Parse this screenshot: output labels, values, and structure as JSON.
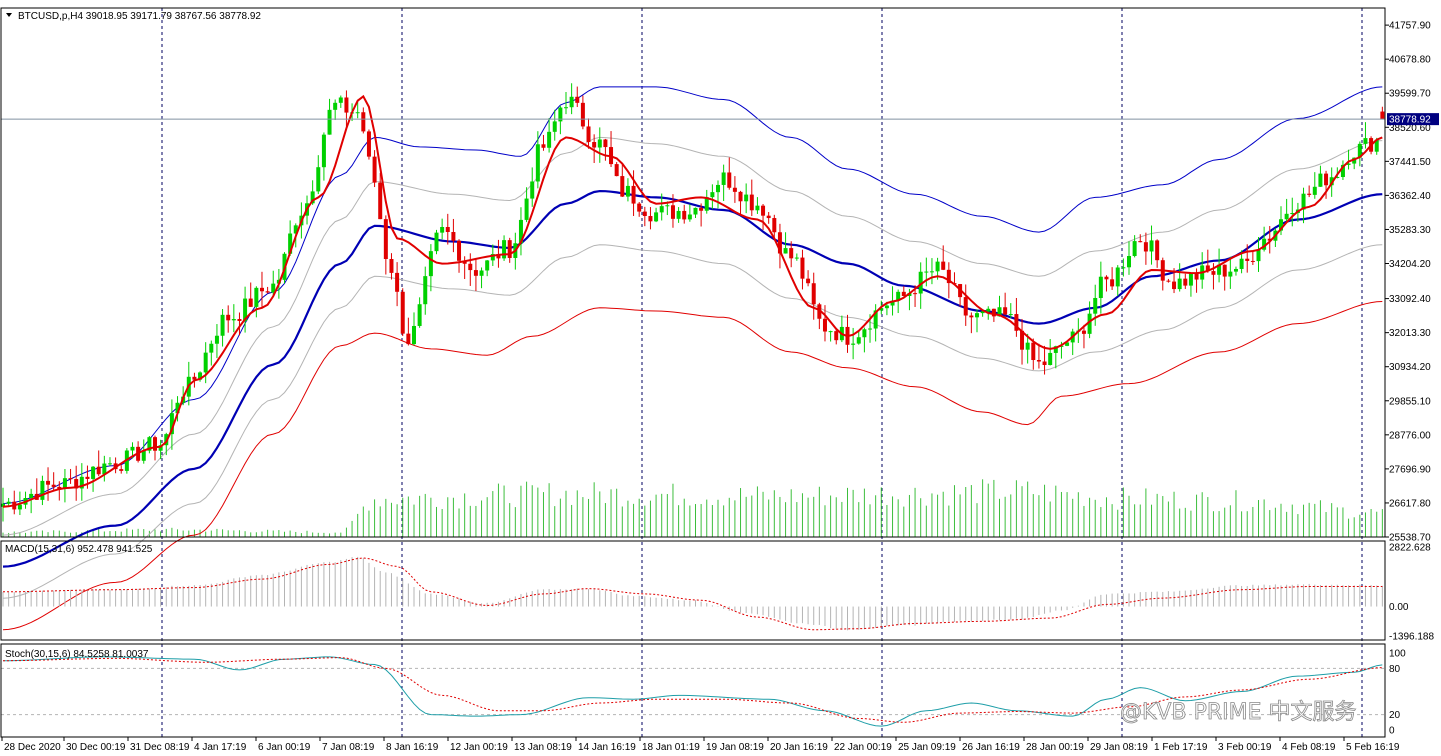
{
  "window": {
    "main_header": "BTCUSD,p,H4  39018.95 39171.79 38767.56 38778.92",
    "macd_header": "MACD(15,31,6) 952.478 941.525",
    "stoch_header": "Stoch(30,15,6) 84.5258 81.0037",
    "watermark": "@KVB PRIME 中文服务"
  },
  "colors": {
    "background": "#ffffff",
    "bull_candle": "#00d000",
    "bear_candle": "#e00000",
    "fast_ma": "#e00000",
    "middle_band": "#0000b4",
    "outer_upper_band": "#0000c8",
    "outer_lower_band": "#e00000",
    "inner_bands": "#b4b4b4",
    "volume": "#3cbe3c",
    "macd_hist": "#b4b4b4",
    "macd_signal": "#e00000",
    "stoch_main": "#1e9ea8",
    "stoch_signal": "#e00000",
    "price_tag_bg": "#000080",
    "grid": "#000060"
  },
  "chart_data": [
    {
      "type": "candlestick",
      "symbol": "BTCUSD,p",
      "timeframe": "H4",
      "ohlc_current": {
        "open": 39018.95,
        "high": 39171.79,
        "low": 38767.56,
        "close": 38778.92
      },
      "last_price_label": "38778.92",
      "ylim": [
        25538.7,
        42300
      ],
      "y_ticks": [
        "41757.90",
        "40678.80",
        "39599.70",
        "38520.60",
        "37441.50",
        "36362.40",
        "35283.30",
        "34204.20",
        "33092.40",
        "32013.30",
        "30934.20",
        "29855.10",
        "28776.00",
        "27696.90",
        "26617.80",
        "25538.70"
      ],
      "x_ticks": [
        "28 Dec 2020",
        "30 Dec 00:19",
        "31 Dec 08:19",
        "4 Jan 17:19",
        "6 Jan 00:19",
        "7 Jan 08:19",
        "8 Jan 16:19",
        "12 Jan 00:19",
        "13 Jan 08:19",
        "14 Jan 16:19",
        "18 Jan 01:19",
        "19 Jan 08:19",
        "20 Jan 16:19",
        "22 Jan 00:19",
        "25 Jan 09:19",
        "26 Jan 16:19",
        "28 Jan 00:19",
        "29 Jan 08:19",
        "1 Feb 17:19",
        "3 Feb 00:19",
        "4 Feb 08:19",
        "5 Feb 16:19"
      ],
      "anchors_close": [
        [
          0,
          26600
        ],
        [
          10,
          27200
        ],
        [
          20,
          27900
        ],
        [
          28,
          28500
        ],
        [
          32,
          30200
        ],
        [
          40,
          32500
        ],
        [
          48,
          33500
        ],
        [
          53,
          35900
        ],
        [
          59,
          39200
        ],
        [
          63,
          39000
        ],
        [
          66,
          36800
        ],
        [
          68,
          34500
        ],
        [
          72,
          31800
        ],
        [
          78,
          35200
        ],
        [
          84,
          34000
        ],
        [
          90,
          34700
        ],
        [
          96,
          37900
        ],
        [
          100,
          39400
        ],
        [
          106,
          38000
        ],
        [
          110,
          36500
        ],
        [
          116,
          35800
        ],
        [
          122,
          35900
        ],
        [
          128,
          36900
        ],
        [
          134,
          36100
        ],
        [
          140,
          34400
        ],
        [
          146,
          32200
        ],
        [
          150,
          31900
        ],
        [
          158,
          33000
        ],
        [
          166,
          34000
        ],
        [
          172,
          32500
        ],
        [
          178,
          32500
        ],
        [
          184,
          31000
        ],
        [
          190,
          31800
        ],
        [
          196,
          33600
        ],
        [
          202,
          35000
        ],
        [
          208,
          33600
        ],
        [
          214,
          33900
        ],
        [
          220,
          34100
        ],
        [
          224,
          35000
        ],
        [
          230,
          36200
        ],
        [
          236,
          37000
        ],
        [
          240,
          37800
        ],
        [
          244,
          38100
        ],
        [
          245,
          38778.92
        ]
      ],
      "fast_ma": [
        [
          0,
          26500
        ],
        [
          12,
          27100
        ],
        [
          28,
          28400
        ],
        [
          34,
          30500
        ],
        [
          46,
          32800
        ],
        [
          56,
          36300
        ],
        [
          64,
          39500
        ],
        [
          70,
          35000
        ],
        [
          78,
          34200
        ],
        [
          90,
          34500
        ],
        [
          100,
          38200
        ],
        [
          108,
          37600
        ],
        [
          116,
          36100
        ],
        [
          124,
          36300
        ],
        [
          134,
          35600
        ],
        [
          144,
          32800
        ],
        [
          150,
          31900
        ],
        [
          158,
          33000
        ],
        [
          166,
          33800
        ],
        [
          176,
          32600
        ],
        [
          186,
          31500
        ],
        [
          196,
          32600
        ],
        [
          204,
          34000
        ],
        [
          212,
          33900
        ],
        [
          222,
          34600
        ],
        [
          232,
          36000
        ],
        [
          240,
          37500
        ],
        [
          245,
          38200
        ]
      ],
      "middle_band": [
        [
          0,
          24600
        ],
        [
          20,
          25900
        ],
        [
          34,
          27700
        ],
        [
          48,
          31000
        ],
        [
          60,
          34200
        ],
        [
          66,
          35400
        ],
        [
          80,
          34900
        ],
        [
          90,
          34700
        ],
        [
          100,
          36100
        ],
        [
          106,
          36500
        ],
        [
          116,
          36300
        ],
        [
          128,
          35900
        ],
        [
          140,
          34800
        ],
        [
          150,
          34200
        ],
        [
          160,
          33500
        ],
        [
          174,
          32700
        ],
        [
          184,
          32300
        ],
        [
          194,
          32800
        ],
        [
          204,
          33800
        ],
        [
          216,
          34300
        ],
        [
          230,
          35600
        ],
        [
          245,
          36400
        ]
      ],
      "outer_upper_band": [
        [
          0,
          26600
        ],
        [
          20,
          27800
        ],
        [
          34,
          29900
        ],
        [
          48,
          33300
        ],
        [
          60,
          37000
        ],
        [
          66,
          38200
        ],
        [
          74,
          37900
        ],
        [
          84,
          37800
        ],
        [
          92,
          37600
        ],
        [
          100,
          39300
        ],
        [
          106,
          39800
        ],
        [
          116,
          39800
        ],
        [
          128,
          39400
        ],
        [
          140,
          38200
        ],
        [
          150,
          37200
        ],
        [
          162,
          36400
        ],
        [
          174,
          35700
        ],
        [
          184,
          35200
        ],
        [
          194,
          36300
        ],
        [
          206,
          36700
        ],
        [
          216,
          37500
        ],
        [
          230,
          38800
        ],
        [
          245,
          39800
        ]
      ],
      "outer_lower_band": [
        [
          0,
          22600
        ],
        [
          20,
          24100
        ],
        [
          34,
          25600
        ],
        [
          48,
          28800
        ],
        [
          60,
          31600
        ],
        [
          66,
          32000
        ],
        [
          76,
          31500
        ],
        [
          86,
          31300
        ],
        [
          94,
          31900
        ],
        [
          106,
          32800
        ],
        [
          116,
          32700
        ],
        [
          128,
          32500
        ],
        [
          140,
          31400
        ],
        [
          150,
          30900
        ],
        [
          162,
          30300
        ],
        [
          174,
          29500
        ],
        [
          182,
          29100
        ],
        [
          188,
          30000
        ],
        [
          200,
          30400
        ],
        [
          216,
          31400
        ],
        [
          230,
          32300
        ],
        [
          245,
          33000
        ]
      ],
      "inner_upper_band": [
        [
          0,
          25600
        ],
        [
          20,
          26900
        ],
        [
          34,
          28800
        ],
        [
          48,
          32200
        ],
        [
          60,
          35600
        ],
        [
          66,
          36800
        ],
        [
          80,
          36400
        ],
        [
          90,
          36200
        ],
        [
          100,
          37700
        ],
        [
          106,
          38200
        ],
        [
          116,
          38000
        ],
        [
          128,
          37600
        ],
        [
          140,
          36500
        ],
        [
          150,
          35700
        ],
        [
          162,
          34900
        ],
        [
          174,
          34200
        ],
        [
          184,
          33800
        ],
        [
          194,
          34600
        ],
        [
          206,
          35200
        ],
        [
          216,
          35900
        ],
        [
          230,
          37200
        ],
        [
          245,
          38100
        ]
      ],
      "inner_lower_band": [
        [
          0,
          23600
        ],
        [
          20,
          25000
        ],
        [
          34,
          26600
        ],
        [
          48,
          29900
        ],
        [
          60,
          32800
        ],
        [
          66,
          33800
        ],
        [
          80,
          33400
        ],
        [
          90,
          33200
        ],
        [
          100,
          34400
        ],
        [
          106,
          34800
        ],
        [
          116,
          34600
        ],
        [
          128,
          34200
        ],
        [
          140,
          33100
        ],
        [
          150,
          32500
        ],
        [
          162,
          31900
        ],
        [
          174,
          31200
        ],
        [
          184,
          30800
        ],
        [
          194,
          31400
        ],
        [
          206,
          32100
        ],
        [
          216,
          32800
        ],
        [
          230,
          34000
        ],
        [
          245,
          34800
        ]
      ],
      "volume_relative": [
        [
          0,
          0.1
        ],
        [
          30,
          0.15
        ],
        [
          60,
          0.1
        ],
        [
          66,
          0.8
        ],
        [
          100,
          0.9
        ],
        [
          140,
          0.85
        ],
        [
          160,
          0.9
        ],
        [
          180,
          0.95
        ],
        [
          200,
          0.8
        ],
        [
          220,
          0.75
        ],
        [
          245,
          0.5
        ]
      ]
    },
    {
      "type": "bar-line",
      "name": "MACD(15,31,6)",
      "values_current": [
        952.478,
        941.525
      ],
      "ylim": [
        -1396.188,
        2822.628
      ],
      "y_ticks": [
        "2822.628",
        "0.00",
        "-1396.188"
      ],
      "histogram": [
        [
          0,
          700
        ],
        [
          20,
          800
        ],
        [
          34,
          1000
        ],
        [
          46,
          1500
        ],
        [
          58,
          2100
        ],
        [
          63,
          2350
        ],
        [
          68,
          1600
        ],
        [
          76,
          600
        ],
        [
          86,
          150
        ],
        [
          96,
          800
        ],
        [
          104,
          850
        ],
        [
          112,
          500
        ],
        [
          122,
          300
        ],
        [
          132,
          -300
        ],
        [
          142,
          -800
        ],
        [
          150,
          -1100
        ],
        [
          160,
          -900
        ],
        [
          170,
          -700
        ],
        [
          180,
          -600
        ],
        [
          188,
          -200
        ],
        [
          196,
          600
        ],
        [
          206,
          700
        ],
        [
          220,
          1000
        ],
        [
          232,
          1050
        ],
        [
          245,
          1000
        ]
      ],
      "signal": [
        [
          0,
          700
        ],
        [
          20,
          800
        ],
        [
          34,
          900
        ],
        [
          46,
          1300
        ],
        [
          58,
          2000
        ],
        [
          64,
          2300
        ],
        [
          70,
          1900
        ],
        [
          76,
          700
        ],
        [
          86,
          50
        ],
        [
          96,
          600
        ],
        [
          104,
          850
        ],
        [
          114,
          600
        ],
        [
          124,
          300
        ],
        [
          134,
          -500
        ],
        [
          144,
          -1100
        ],
        [
          152,
          -1050
        ],
        [
          162,
          -800
        ],
        [
          174,
          -700
        ],
        [
          186,
          -550
        ],
        [
          196,
          100
        ],
        [
          206,
          400
        ],
        [
          220,
          800
        ],
        [
          232,
          950
        ],
        [
          245,
          950
        ]
      ]
    },
    {
      "type": "line",
      "name": "Stoch(30,15,6)",
      "values_current": [
        84.5258,
        81.0037
      ],
      "ylim": [
        0,
        100
      ],
      "y_ticks": [
        "100",
        "80",
        "20",
        "0"
      ],
      "main": [
        [
          0,
          90
        ],
        [
          18,
          95
        ],
        [
          34,
          92
        ],
        [
          42,
          78
        ],
        [
          50,
          92
        ],
        [
          58,
          95
        ],
        [
          66,
          85
        ],
        [
          76,
          20
        ],
        [
          84,
          18
        ],
        [
          92,
          20
        ],
        [
          104,
          42
        ],
        [
          112,
          40
        ],
        [
          120,
          45
        ],
        [
          136,
          40
        ],
        [
          146,
          25
        ],
        [
          156,
          5
        ],
        [
          164,
          25
        ],
        [
          172,
          35
        ],
        [
          180,
          25
        ],
        [
          190,
          18
        ],
        [
          196,
          40
        ],
        [
          202,
          55
        ],
        [
          210,
          38
        ],
        [
          220,
          50
        ],
        [
          230,
          70
        ],
        [
          240,
          75
        ],
        [
          245,
          84.5
        ]
      ],
      "signal": [
        [
          0,
          90
        ],
        [
          20,
          93
        ],
        [
          36,
          88
        ],
        [
          50,
          92
        ],
        [
          60,
          94
        ],
        [
          68,
          80
        ],
        [
          78,
          45
        ],
        [
          88,
          25
        ],
        [
          96,
          25
        ],
        [
          106,
          35
        ],
        [
          116,
          40
        ],
        [
          128,
          40
        ],
        [
          140,
          35
        ],
        [
          152,
          15
        ],
        [
          160,
          10
        ],
        [
          170,
          22
        ],
        [
          180,
          24
        ],
        [
          190,
          22
        ],
        [
          200,
          30
        ],
        [
          210,
          43
        ],
        [
          220,
          52
        ],
        [
          232,
          66
        ],
        [
          245,
          81
        ]
      ]
    }
  ]
}
